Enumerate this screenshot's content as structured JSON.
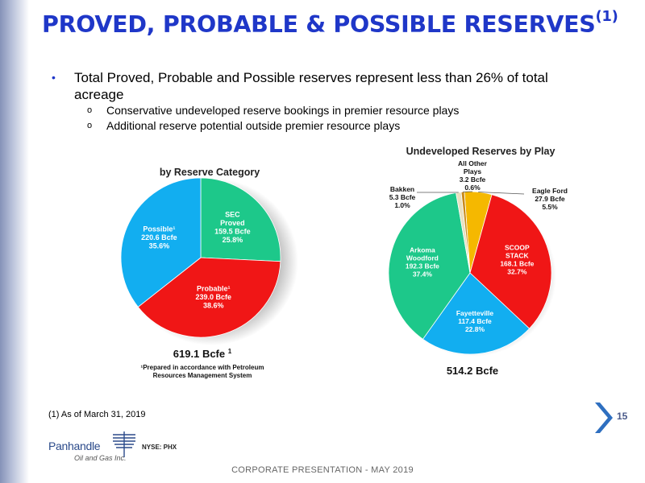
{
  "slide": {
    "title": "PROVED, PROBABLE & POSSIBLE RESERVES",
    "title_sup": "(1)",
    "bullet_main_1": "Total Proved, Probable and Possible reserves represent less than 26% of total",
    "bullet_main_2": "acreage",
    "sub_bullets": [
      "Conservative undeveloped reserve bookings in premier resource plays",
      "Additional reserve potential outside premier resource plays"
    ],
    "footnote": "(1) As of March 31, 2019",
    "page_number": "15",
    "footer": "CORPORATE PRESENTATION - MAY 2019",
    "logo_name": "Panhandle",
    "logo_sub": "Oil and Gas Inc.",
    "ticker": "NYSE: PHX"
  },
  "chart_data": [
    {
      "type": "pie",
      "title": "by Reserve Category",
      "total_label": "619.1 Bcfe ",
      "total_sup": "1",
      "note_line1": "¹Prepared in accordance with Petroleum",
      "note_line2": "Resources Management System",
      "slices": [
        {
          "label_lines": [
            "SEC",
            "Proved",
            "159.5 Bcfe",
            "25.8%"
          ],
          "value": 159.5,
          "percent": 25.8,
          "color": "#1dc88a"
        },
        {
          "label_lines": [
            "Probable¹",
            "239.0 Bcfe",
            "38.6%"
          ],
          "value": 239.0,
          "percent": 38.6,
          "color": "#f01616"
        },
        {
          "label_lines": [
            "Possible¹",
            "220.6 Bcfe",
            "35.6%"
          ],
          "value": 220.6,
          "percent": 35.6,
          "color": "#12aef0"
        }
      ]
    },
    {
      "type": "pie",
      "title": "Undeveloped Reserves by Play",
      "total_label": "514.2 Bcfe",
      "slices": [
        {
          "label_lines": [
            "Eagle Ford",
            "27.9 Bcfe",
            "5.5%"
          ],
          "value": 27.9,
          "percent": 5.5,
          "color": "#f5b800"
        },
        {
          "label_lines": [
            "SCOOP",
            "STACK",
            "168.1 Bcfe",
            "32.7%"
          ],
          "value": 168.1,
          "percent": 32.7,
          "color": "#f01616"
        },
        {
          "label_lines": [
            "Fayetteville",
            "117.4 Bcfe",
            "22.8%"
          ],
          "value": 117.4,
          "percent": 22.8,
          "color": "#12aef0"
        },
        {
          "label_lines": [
            "Arkoma",
            "Woodford",
            "192.3 Bcfe",
            "37.4%"
          ],
          "value": 192.3,
          "percent": 37.4,
          "color": "#1dc88a"
        },
        {
          "label_lines": [
            "Bakken",
            "5.3 Bcfe",
            "1.0%"
          ],
          "value": 5.3,
          "percent": 1.0,
          "color": "#e8e0c0"
        },
        {
          "label_lines": [
            "All Other",
            "Plays",
            "3.2 Bcfe",
            "0.6%"
          ],
          "value": 3.2,
          "percent": 0.6,
          "color": "#c98a1a"
        }
      ]
    }
  ]
}
